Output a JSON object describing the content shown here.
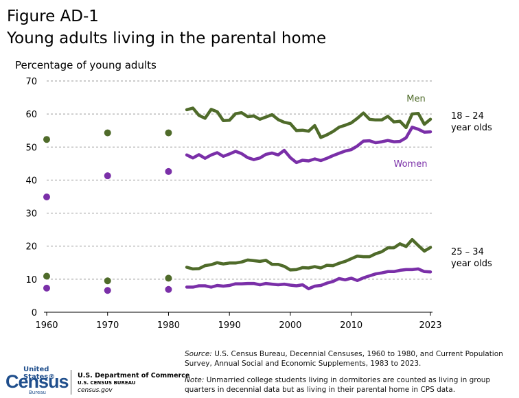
{
  "figure_label": "Figure AD-1",
  "title": "Young adults living in the parental home",
  "source_prefix": "Source:",
  "source_text": "U.S. Census Bureau, Decennial Censuses, 1960 to 1980, and Current Population Survey, Annual Social and Economic Supplements, 1983 to 2023.",
  "note_prefix": "Note:",
  "note_text": "Unmarried college students living in dormitories are counted as living in group quarters in decennial data but as living in their parental home in CPS data.",
  "logo": {
    "line1": "United States®",
    "line2": "Census",
    "line3": "Bureau"
  },
  "dept": {
    "line1": "U.S. Department of Commerce",
    "line2": "U.S. CENSUS BUREAU",
    "line3": "census.gov"
  },
  "colors": {
    "men": "#4f6b2a",
    "women": "#7a2fa8",
    "grid": "#9a9a9a"
  },
  "chart_data": {
    "type": "line",
    "ylabel": "Percentage of young adults",
    "ylim": [
      0,
      70
    ],
    "yticks": [
      0,
      10,
      20,
      30,
      40,
      50,
      60,
      70
    ],
    "xlim": [
      1960,
      2023
    ],
    "xticks": [
      "1960",
      "1970",
      "1980",
      "1990",
      "2000",
      "2010",
      "2023"
    ],
    "grid": true,
    "series_labels": {
      "men": "Men",
      "women": "Women"
    },
    "group_labels": {
      "young": [
        "18 – 24",
        "year olds"
      ],
      "older": [
        "25 – 34",
        "year olds"
      ]
    },
    "decennial_years": [
      1960,
      1970,
      1980
    ],
    "series": [
      {
        "name": "Men",
        "group": "18-24",
        "decennial": [
          52.3,
          54.3,
          54.3
        ],
        "cps_x": [
          1983,
          1984,
          1985,
          1986,
          1987,
          1988,
          1989,
          1990,
          1991,
          1992,
          1993,
          1994,
          1995,
          1996,
          1997,
          1998,
          1999,
          2000,
          2001,
          2002,
          2003,
          2004,
          2005,
          2006,
          2007,
          2008,
          2009,
          2010,
          2011,
          2012,
          2013,
          2014,
          2015,
          2016,
          2017,
          2018,
          2019,
          2020,
          2021,
          2022,
          2023
        ],
        "cps_y": [
          61.3,
          61.8,
          59.6,
          58.7,
          61.4,
          60.7,
          58.0,
          58.1,
          60.1,
          60.4,
          59.2,
          59.4,
          58.4,
          59.1,
          59.8,
          58.3,
          57.5,
          57.1,
          55.0,
          55.1,
          54.8,
          56.5,
          52.9,
          53.7,
          54.7,
          56.0,
          56.6,
          57.3,
          58.7,
          60.3,
          58.4,
          58.2,
          58.2,
          59.3,
          57.6,
          57.8,
          55.9,
          60.0,
          60.2,
          56.9,
          58.4
        ]
      },
      {
        "name": "Women",
        "group": "18-24",
        "decennial": [
          34.9,
          41.3,
          42.6
        ],
        "cps_x": [
          1983,
          1984,
          1985,
          1986,
          1987,
          1988,
          1989,
          1990,
          1991,
          1992,
          1993,
          1994,
          1995,
          1996,
          1997,
          1998,
          1999,
          2000,
          2001,
          2002,
          2003,
          2004,
          2005,
          2006,
          2007,
          2008,
          2009,
          2010,
          2011,
          2012,
          2013,
          2014,
          2015,
          2016,
          2017,
          2018,
          2019,
          2020,
          2021,
          2022,
          2023
        ],
        "cps_y": [
          47.6,
          46.7,
          47.7,
          46.6,
          47.6,
          48.3,
          47.2,
          47.9,
          48.7,
          48.0,
          46.8,
          46.2,
          46.7,
          47.8,
          48.2,
          47.6,
          49.0,
          46.8,
          45.3,
          46.0,
          45.8,
          46.4,
          45.9,
          46.6,
          47.4,
          48.1,
          48.8,
          49.2,
          50.3,
          51.8,
          51.9,
          51.3,
          51.6,
          52.0,
          51.6,
          51.7,
          52.8,
          56.0,
          55.4,
          54.5,
          54.6
        ]
      },
      {
        "name": "Men",
        "group": "25-34",
        "decennial": [
          10.9,
          9.5,
          10.3
        ],
        "cps_x": [
          1983,
          1984,
          1985,
          1986,
          1987,
          1988,
          1989,
          1990,
          1991,
          1992,
          1993,
          1994,
          1995,
          1996,
          1997,
          1998,
          1999,
          2000,
          2001,
          2002,
          2003,
          2004,
          2005,
          2006,
          2007,
          2008,
          2009,
          2010,
          2011,
          2012,
          2013,
          2014,
          2015,
          2016,
          2017,
          2018,
          2019,
          2020,
          2021,
          2022,
          2023
        ],
        "cps_y": [
          13.6,
          13.1,
          13.2,
          14.1,
          14.4,
          15.0,
          14.6,
          14.9,
          14.9,
          15.2,
          15.8,
          15.6,
          15.4,
          15.7,
          14.5,
          14.5,
          13.9,
          12.8,
          12.9,
          13.5,
          13.4,
          13.8,
          13.4,
          14.2,
          14.1,
          14.8,
          15.4,
          16.2,
          17.0,
          16.8,
          16.8,
          17.7,
          18.3,
          19.5,
          19.5,
          20.7,
          19.9,
          22.0,
          20.2,
          18.5,
          19.6
        ]
      },
      {
        "name": "Women",
        "group": "25-34",
        "decennial": [
          7.3,
          6.6,
          6.9
        ],
        "cps_x": [
          1983,
          1984,
          1985,
          1986,
          1987,
          1988,
          1989,
          1990,
          1991,
          1992,
          1993,
          1994,
          1995,
          1996,
          1997,
          1998,
          1999,
          2000,
          2001,
          2002,
          2003,
          2004,
          2005,
          2006,
          2007,
          2008,
          2009,
          2010,
          2011,
          2012,
          2013,
          2014,
          2015,
          2016,
          2017,
          2018,
          2019,
          2020,
          2021,
          2022,
          2023
        ],
        "cps_y": [
          7.6,
          7.6,
          8.0,
          8.0,
          7.6,
          8.1,
          7.9,
          8.1,
          8.6,
          8.6,
          8.7,
          8.7,
          8.3,
          8.7,
          8.5,
          8.3,
          8.5,
          8.2,
          8.0,
          8.3,
          7.1,
          7.9,
          8.1,
          8.8,
          9.3,
          10.2,
          9.8,
          10.3,
          9.6,
          10.4,
          11.0,
          11.6,
          11.9,
          12.3,
          12.3,
          12.7,
          12.9,
          12.9,
          13.1,
          12.3,
          12.2
        ]
      }
    ]
  }
}
